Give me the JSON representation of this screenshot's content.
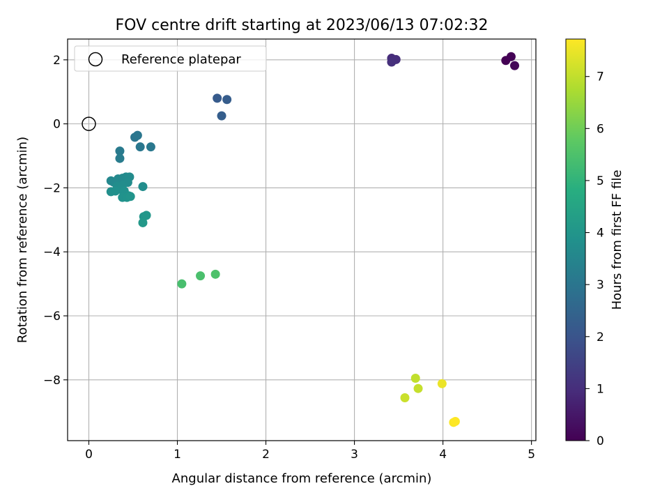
{
  "chart_data": {
    "type": "scatter",
    "title": "FOV centre drift starting at 2023/06/13 07:02:32",
    "xlabel": "Angular distance from reference (arcmin)",
    "ylabel": "Rotation from reference (arcmin)",
    "xlim": [
      -0.24,
      5.05
    ],
    "ylim": [
      -9.9,
      2.65
    ],
    "xticks": [
      0,
      1,
      2,
      3,
      4,
      5
    ],
    "yticks": [
      2,
      0,
      -2,
      -4,
      -6,
      -8
    ],
    "xtick_labels": [
      "0",
      "1",
      "2",
      "3",
      "4",
      "5"
    ],
    "ytick_labels": [
      "2",
      "0",
      "−2",
      "−4",
      "−6",
      "−8"
    ],
    "grid": true,
    "legend": {
      "position": "top-left",
      "entries": [
        "Reference platepar"
      ]
    },
    "colormap": "viridis",
    "colorbar": {
      "label": "Hours from first FF file",
      "range": [
        0,
        7.72
      ],
      "ticks": [
        0,
        1,
        2,
        3,
        4,
        5,
        6,
        7
      ],
      "tick_labels": [
        "0",
        "1",
        "2",
        "3",
        "4",
        "5",
        "6",
        "7"
      ]
    },
    "reference_point": {
      "x": 0,
      "y": 0
    },
    "points": [
      {
        "x": 4.71,
        "y": 1.98,
        "hours": 0.0
      },
      {
        "x": 4.77,
        "y": 2.1,
        "hours": 0.05
      },
      {
        "x": 4.81,
        "y": 1.82,
        "hours": 0.1
      },
      {
        "x": 3.42,
        "y": 2.05,
        "hours": 0.95
      },
      {
        "x": 3.47,
        "y": 2.01,
        "hours": 1.0
      },
      {
        "x": 3.42,
        "y": 1.93,
        "hours": 1.05
      },
      {
        "x": 1.45,
        "y": 0.8,
        "hours": 2.2
      },
      {
        "x": 1.56,
        "y": 0.76,
        "hours": 2.25
      },
      {
        "x": 1.5,
        "y": 0.25,
        "hours": 2.3
      },
      {
        "x": 0.52,
        "y": -0.42,
        "hours": 3.0
      },
      {
        "x": 0.55,
        "y": -0.36,
        "hours": 3.02
      },
      {
        "x": 0.58,
        "y": -0.72,
        "hours": 3.05
      },
      {
        "x": 0.7,
        "y": -0.72,
        "hours": 3.08
      },
      {
        "x": 0.35,
        "y": -0.85,
        "hours": 3.15
      },
      {
        "x": 0.35,
        "y": -1.08,
        "hours": 3.2
      },
      {
        "x": 0.25,
        "y": -1.78,
        "hours": 3.55
      },
      {
        "x": 0.28,
        "y": -1.82,
        "hours": 3.58
      },
      {
        "x": 0.33,
        "y": -1.72,
        "hours": 3.6
      },
      {
        "x": 0.38,
        "y": -1.7,
        "hours": 3.62
      },
      {
        "x": 0.42,
        "y": -1.66,
        "hours": 3.65
      },
      {
        "x": 0.46,
        "y": -1.66,
        "hours": 3.67
      },
      {
        "x": 0.44,
        "y": -1.83,
        "hours": 3.7
      },
      {
        "x": 0.38,
        "y": -1.92,
        "hours": 3.72
      },
      {
        "x": 0.32,
        "y": -1.95,
        "hours": 3.75
      },
      {
        "x": 0.36,
        "y": -2.05,
        "hours": 3.77
      },
      {
        "x": 0.25,
        "y": -2.12,
        "hours": 3.8
      },
      {
        "x": 0.3,
        "y": -2.1,
        "hours": 3.82
      },
      {
        "x": 0.4,
        "y": -2.1,
        "hours": 3.85
      },
      {
        "x": 0.45,
        "y": -2.25,
        "hours": 3.87
      },
      {
        "x": 0.38,
        "y": -2.3,
        "hours": 3.9
      },
      {
        "x": 0.43,
        "y": -2.3,
        "hours": 3.92
      },
      {
        "x": 0.47,
        "y": -2.27,
        "hours": 3.95
      },
      {
        "x": 0.61,
        "y": -1.96,
        "hours": 3.75
      },
      {
        "x": 0.62,
        "y": -2.9,
        "hours": 4.0
      },
      {
        "x": 0.65,
        "y": -2.86,
        "hours": 4.05
      },
      {
        "x": 0.61,
        "y": -3.09,
        "hours": 4.1
      },
      {
        "x": 1.05,
        "y": -5.0,
        "hours": 5.4
      },
      {
        "x": 1.26,
        "y": -4.75,
        "hours": 5.45
      },
      {
        "x": 1.43,
        "y": -4.7,
        "hours": 5.5
      },
      {
        "x": 3.69,
        "y": -7.95,
        "hours": 7.0
      },
      {
        "x": 3.72,
        "y": -8.27,
        "hours": 7.05
      },
      {
        "x": 3.57,
        "y": -8.56,
        "hours": 7.1
      },
      {
        "x": 3.99,
        "y": -8.12,
        "hours": 7.5
      },
      {
        "x": 4.12,
        "y": -9.33,
        "hours": 7.68
      },
      {
        "x": 4.14,
        "y": -9.3,
        "hours": 7.72
      }
    ]
  }
}
